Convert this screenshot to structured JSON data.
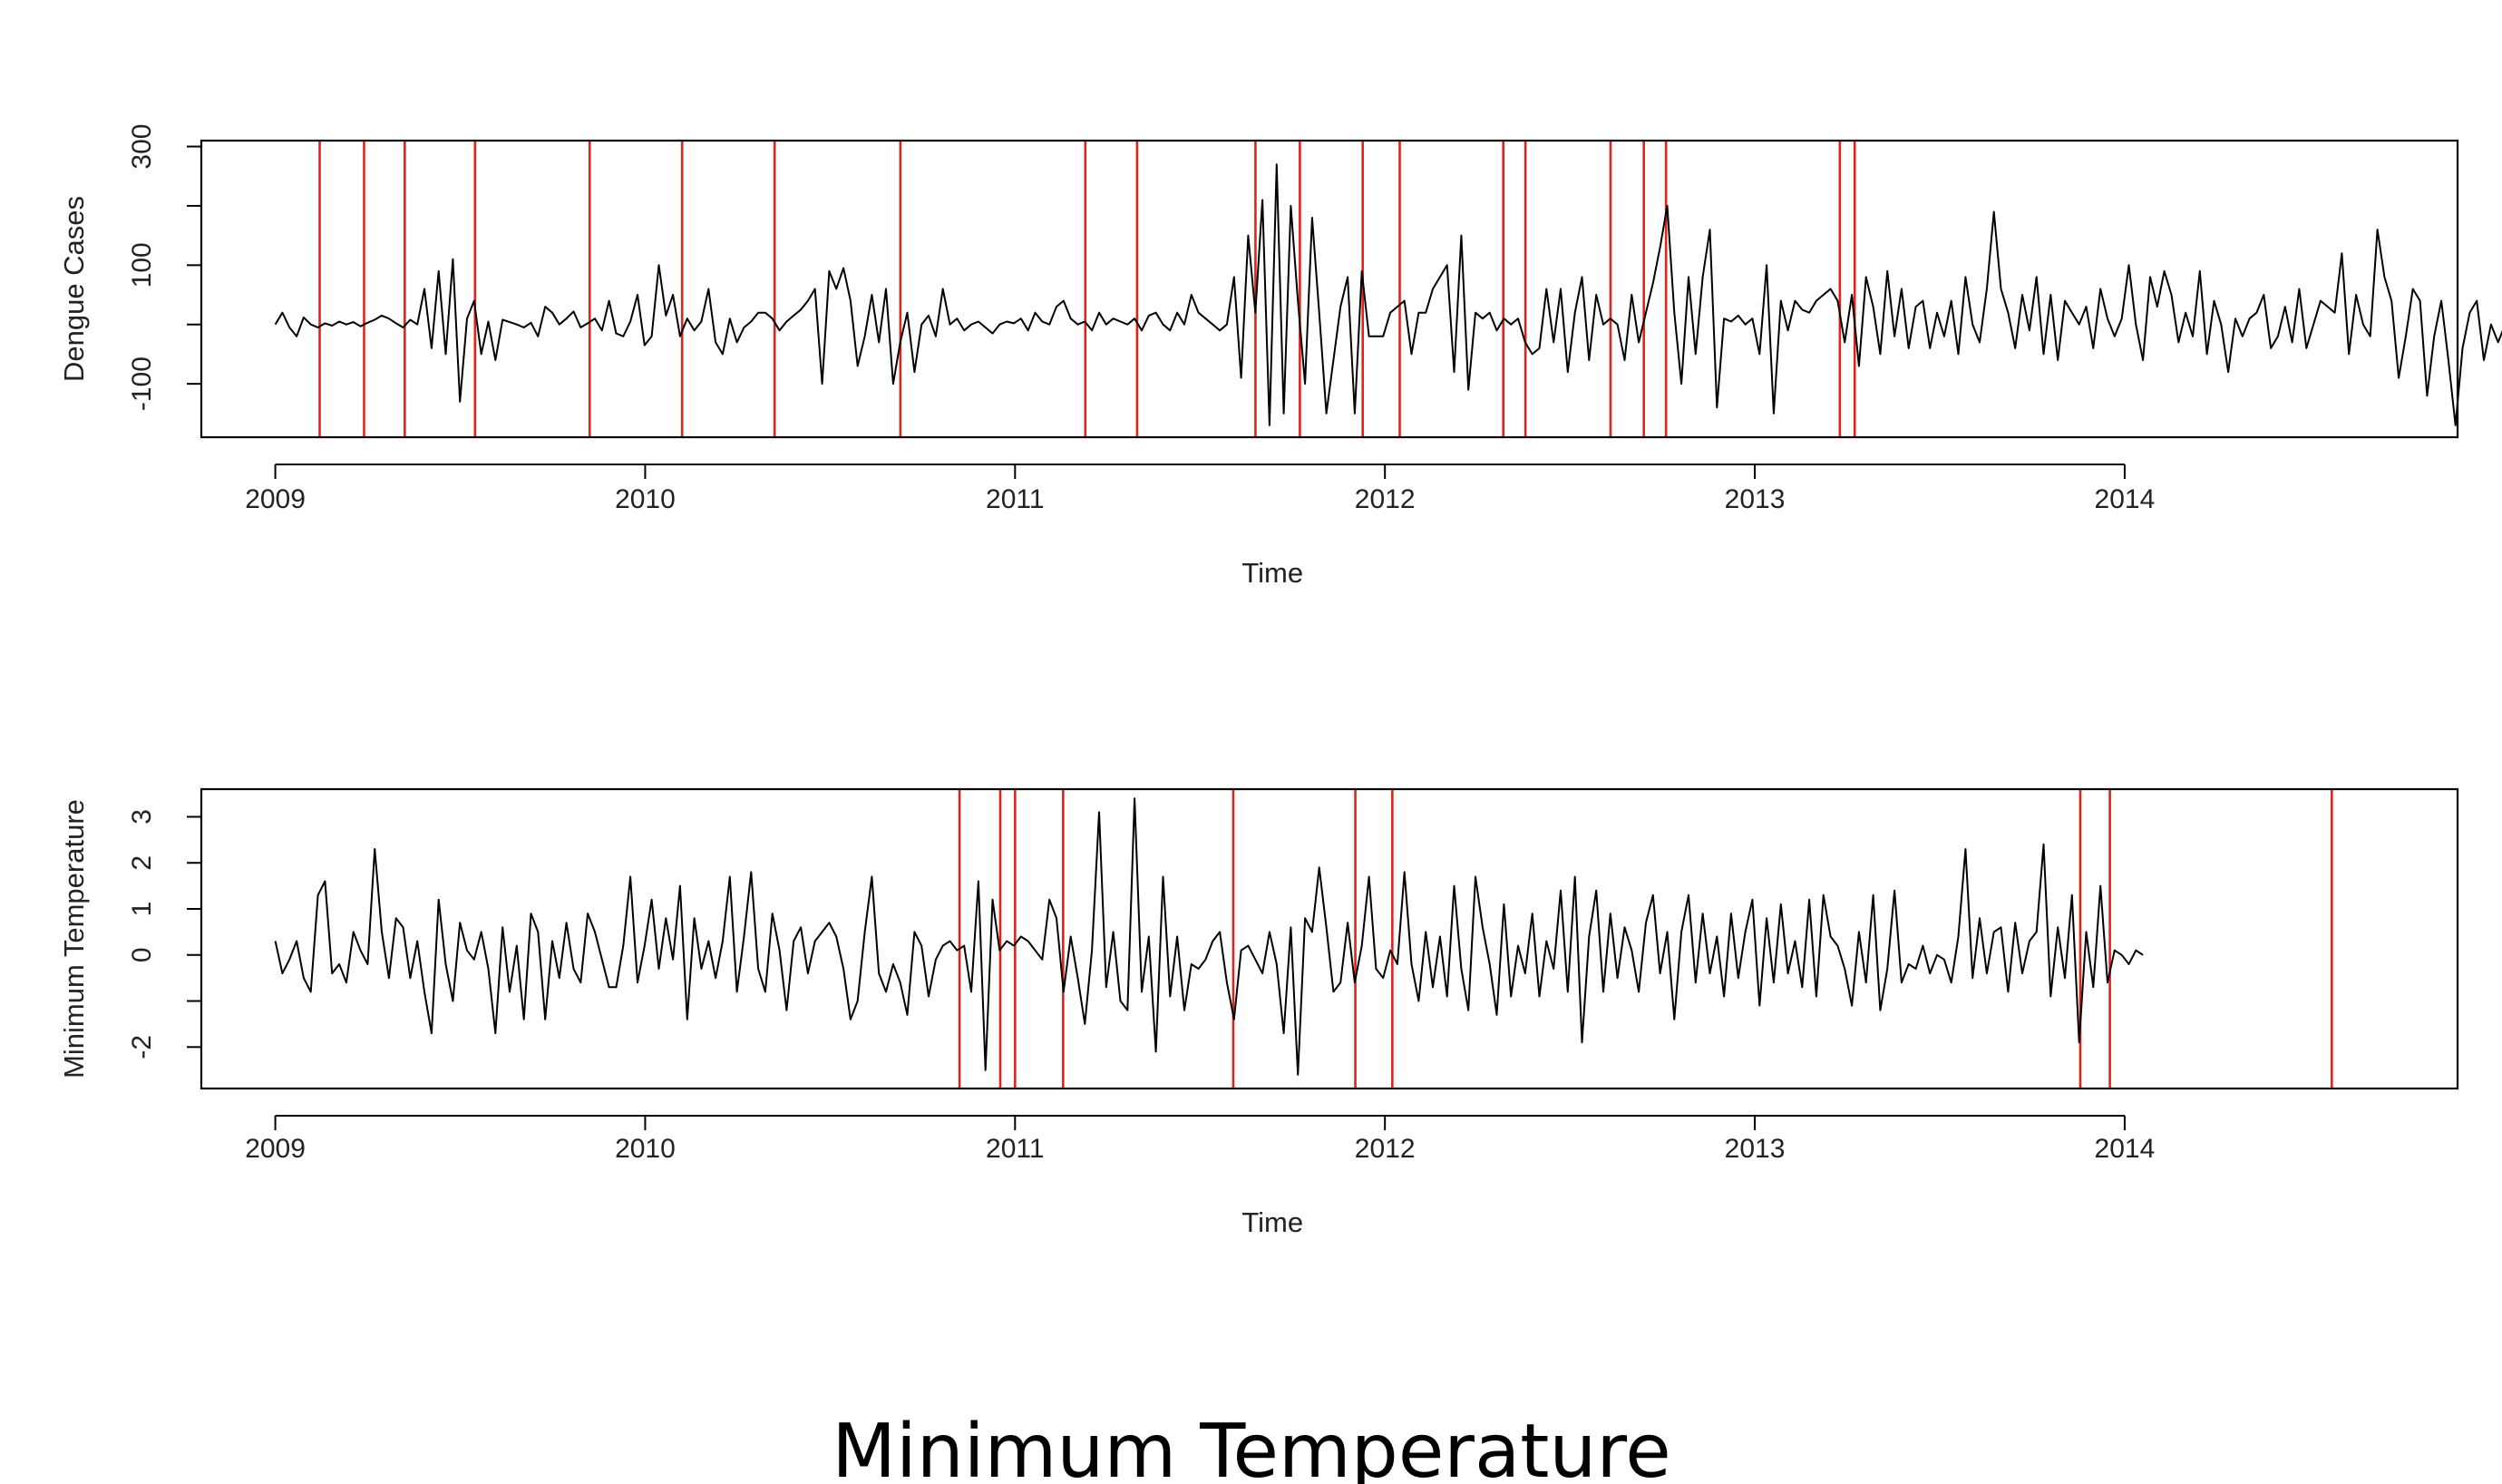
{
  "page": {
    "title": "Minimum Temperature"
  },
  "chart_data": [
    {
      "type": "line",
      "xlabel": "Time",
      "ylabel": "Dengue Cases",
      "xlim": [
        2008.8,
        2014.9
      ],
      "ylim": [
        -190,
        310
      ],
      "x_ticks": [
        2009,
        2010,
        2011,
        2012,
        2013,
        2014
      ],
      "x_tick_labels": [
        "2009",
        "2010",
        "2011",
        "2012",
        "2013",
        "2014"
      ],
      "y_ticks": [
        300,
        200,
        100,
        0,
        -100
      ],
      "y_tick_labels": [
        "300",
        "",
        "100",
        "",
        "-100"
      ],
      "grid": false,
      "colors": {
        "series": "#000000",
        "breakpoints": "#e0241b"
      },
      "series": [
        {
          "start": 2009.0,
          "step": 0.0192,
          "values": [
            0,
            20,
            -5,
            -20,
            12,
            0,
            -5,
            2,
            -2,
            5,
            0,
            4,
            -3,
            3,
            8,
            15,
            10,
            2,
            -5,
            8,
            0,
            60,
            -40,
            90,
            -50,
            110,
            -130,
            10,
            40,
            -50,
            5,
            -60,
            8,
            4,
            0,
            -5,
            3,
            -20,
            30,
            20,
            0,
            10,
            22,
            -5,
            2,
            10,
            -10,
            40,
            -15,
            -20,
            5,
            50,
            -35,
            -20,
            100,
            15,
            50,
            -20,
            10,
            -10,
            5,
            60,
            -30,
            -50,
            10,
            -30,
            -5,
            5,
            20,
            20,
            10,
            -10,
            5,
            15,
            25,
            40,
            60,
            -100,
            90,
            60,
            95,
            40,
            -70,
            -20,
            50,
            -30,
            60,
            -100,
            -30,
            20,
            -80,
            0,
            15,
            -20,
            60,
            0,
            10,
            -10,
            0,
            5,
            -5,
            -15,
            0,
            5,
            2,
            10,
            -10,
            20,
            5,
            0,
            30,
            40,
            10,
            0,
            5,
            -10,
            20,
            0,
            10,
            5,
            0,
            10,
            -10,
            15,
            20,
            0,
            -10,
            20,
            0,
            50,
            20,
            10,
            0,
            -10,
            0,
            80,
            -90,
            150,
            20,
            210,
            -170,
            270,
            -150,
            200,
            40,
            -100,
            180,
            20,
            -150,
            -60,
            30,
            80,
            -150,
            90,
            -20,
            -20,
            -20,
            20,
            30,
            40,
            -50,
            20,
            20,
            60,
            80,
            100,
            -80,
            150,
            -110,
            20,
            10,
            20,
            -10,
            10,
            0,
            10,
            -30,
            -50,
            -40,
            60,
            -30,
            60,
            -80,
            20,
            80,
            -60,
            50,
            0,
            10,
            0,
            -60,
            50,
            -30,
            20,
            70,
            130,
            200,
            20,
            -100,
            80,
            -50,
            80,
            160,
            -140,
            10,
            5,
            15,
            0,
            10,
            -50,
            100,
            -150,
            40,
            -10,
            40,
            25,
            20,
            40,
            50,
            60,
            40,
            -30,
            50,
            -70,
            80,
            30,
            -50,
            90,
            -20,
            60,
            -40,
            30,
            40,
            -40,
            20,
            -20,
            40,
            -50,
            80,
            0,
            -30,
            60,
            190,
            60,
            20,
            -40,
            50,
            -10,
            80,
            -50,
            50,
            -60,
            40,
            20,
            0,
            30,
            -40,
            60,
            10,
            -20,
            10,
            100,
            0,
            -60,
            80,
            30,
            90,
            50,
            -30,
            20,
            -20,
            90,
            -50,
            40,
            0,
            -80,
            10,
            -20,
            10,
            20,
            50,
            -40,
            -20,
            30,
            -30,
            60,
            -40,
            0,
            40,
            30,
            20,
            120,
            -50,
            50,
            0,
            -20,
            160,
            80,
            40,
            -90,
            -20,
            60,
            40,
            -120,
            -20,
            40,
            -60,
            -170,
            -40,
            20,
            40,
            -60,
            0,
            -30,
            0,
            -10,
            10
          ]
        }
      ],
      "breakpoints": [
        2009.12,
        2009.24,
        2009.35,
        2009.54,
        2009.85,
        2010.1,
        2010.35,
        2010.69,
        2011.19,
        2011.33,
        2011.65,
        2011.77,
        2011.94,
        2012.04,
        2012.32,
        2012.38,
        2012.61,
        2012.7,
        2012.76,
        2013.23,
        2013.27
      ]
    },
    {
      "type": "line",
      "xlabel": "Time",
      "ylabel": "Minimum Temperature",
      "xlim": [
        2008.8,
        2014.9
      ],
      "ylim": [
        -2.9,
        3.6
      ],
      "x_ticks": [
        2009,
        2010,
        2011,
        2012,
        2013,
        2014
      ],
      "x_tick_labels": [
        "2009",
        "2010",
        "2011",
        "2012",
        "2013",
        "2014"
      ],
      "y_ticks": [
        3,
        2,
        1,
        0,
        -1,
        -2
      ],
      "y_tick_labels": [
        "3",
        "2",
        "1",
        "0",
        "",
        "-2"
      ],
      "grid": false,
      "colors": {
        "series": "#000000",
        "breakpoints": "#e0241b"
      },
      "series": [
        {
          "start": 2009.0,
          "step": 0.0192,
          "values": [
            0.3,
            -0.4,
            -0.1,
            0.3,
            -0.5,
            -0.8,
            1.3,
            1.6,
            -0.4,
            -0.2,
            -0.6,
            0.5,
            0.1,
            -0.2,
            2.3,
            0.5,
            -0.5,
            0.8,
            0.6,
            -0.5,
            0.3,
            -0.8,
            -1.7,
            1.2,
            -0.2,
            -1.0,
            0.7,
            0.1,
            -0.1,
            0.5,
            -0.3,
            -1.7,
            0.6,
            -0.8,
            0.2,
            -1.4,
            0.9,
            0.5,
            -1.4,
            0.3,
            -0.5,
            0.7,
            -0.3,
            -0.6,
            0.9,
            0.5,
            -0.1,
            -0.7,
            -0.7,
            0.2,
            1.7,
            -0.6,
            0.2,
            1.2,
            -0.3,
            0.8,
            -0.1,
            1.5,
            -1.4,
            0.8,
            -0.3,
            0.3,
            -0.5,
            0.3,
            1.7,
            -0.8,
            0.4,
            1.8,
            -0.3,
            -0.8,
            0.9,
            0.1,
            -1.2,
            0.3,
            0.6,
            -0.4,
            0.3,
            0.5,
            0.7,
            0.4,
            -0.3,
            -1.4,
            -1.0,
            0.5,
            1.7,
            -0.4,
            -0.8,
            -0.2,
            -0.6,
            -1.3,
            0.5,
            0.2,
            -0.9,
            -0.1,
            0.2,
            0.3,
            0.1,
            0.2,
            -0.8,
            1.6,
            -2.5,
            1.2,
            0.1,
            0.3,
            0.2,
            0.4,
            0.3,
            0.1,
            -0.1,
            1.2,
            0.8,
            -0.8,
            0.4,
            -0.5,
            -1.5,
            0.1,
            3.1,
            -0.7,
            0.5,
            -1.0,
            -1.2,
            3.4,
            -0.8,
            0.4,
            -2.1,
            1.7,
            -0.9,
            0.4,
            -1.2,
            -0.2,
            -0.3,
            -0.1,
            0.3,
            0.5,
            -0.6,
            -1.4,
            0.1,
            0.2,
            -0.1,
            -0.4,
            0.5,
            -0.2,
            -1.7,
            0.6,
            -2.6,
            0.8,
            0.5,
            1.9,
            0.6,
            -0.8,
            -0.6,
            0.7,
            -0.6,
            0.2,
            1.7,
            -0.3,
            -0.5,
            0.1,
            -0.2,
            1.8,
            -0.2,
            -1.0,
            0.5,
            -0.7,
            0.4,
            -0.9,
            1.5,
            -0.3,
            -1.2,
            1.7,
            0.6,
            -0.2,
            -1.3,
            1.1,
            -0.9,
            0.2,
            -0.4,
            0.9,
            -0.9,
            0.3,
            -0.3,
            1.4,
            -0.8,
            1.7,
            -1.9,
            0.4,
            1.4,
            -0.8,
            0.9,
            -0.5,
            0.6,
            0.1,
            -0.8,
            0.7,
            1.3,
            -0.4,
            0.5,
            -1.4,
            0.5,
            1.3,
            -0.6,
            0.9,
            -0.4,
            0.4,
            -0.9,
            0.9,
            -0.5,
            0.5,
            1.2,
            -1.1,
            0.8,
            -0.6,
            1.1,
            -0.4,
            0.3,
            -0.7,
            1.2,
            -0.9,
            1.3,
            0.4,
            0.2,
            -0.3,
            -1.1,
            0.5,
            -0.6,
            1.3,
            -1.2,
            -0.3,
            1.4,
            -0.6,
            -0.2,
            -0.3,
            0.2,
            -0.4,
            0.0,
            -0.1,
            -0.6,
            0.4,
            2.3,
            -0.5,
            0.8,
            -0.4,
            0.5,
            0.6,
            -0.8,
            0.7,
            -0.4,
            0.3,
            0.5,
            2.4,
            -0.9,
            0.6,
            -0.5,
            1.3,
            -1.9,
            0.5,
            -0.7,
            1.5,
            -0.6,
            0.1,
            0.0,
            -0.2,
            0.1,
            0.0
          ]
        }
      ],
      "breakpoints": [
        2010.85,
        2010.96,
        2011.0,
        2011.13,
        2011.59,
        2011.92,
        2012.02,
        2013.88,
        2013.96,
        2014.56
      ]
    }
  ]
}
